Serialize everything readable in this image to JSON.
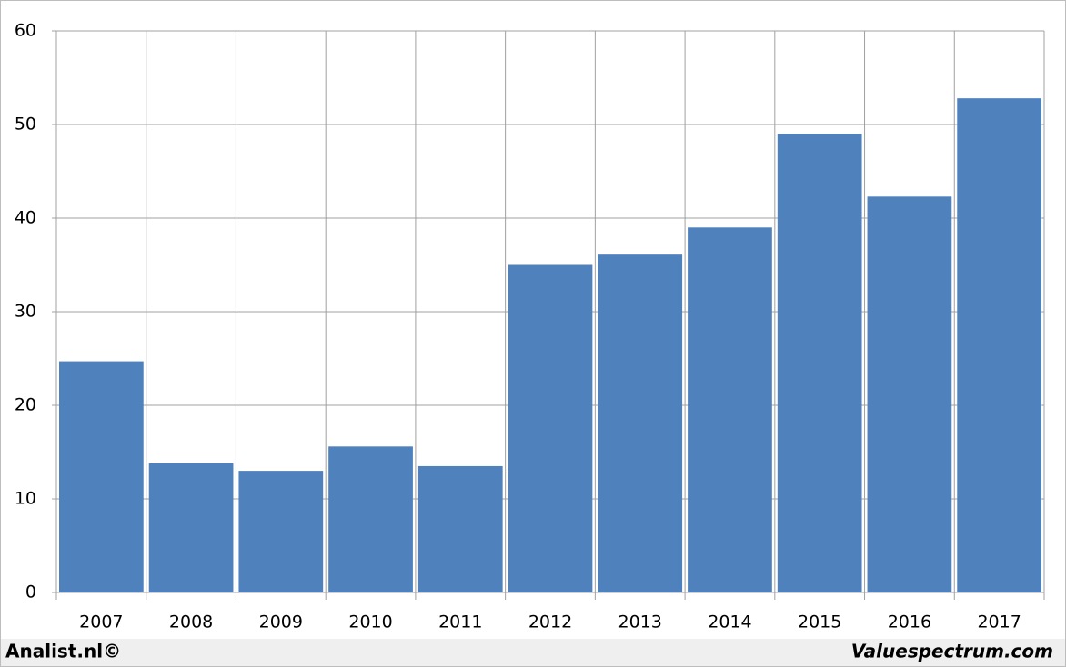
{
  "chart_data": {
    "type": "bar",
    "categories": [
      "2007",
      "2008",
      "2009",
      "2010",
      "2011",
      "2012",
      "2013",
      "2014",
      "2015",
      "2016",
      "2017"
    ],
    "values": [
      24.7,
      13.8,
      13.0,
      15.6,
      13.5,
      35.0,
      36.1,
      39.0,
      49.0,
      42.3,
      52.8
    ],
    "color": "#4f81bd",
    "ylim": [
      0,
      60
    ],
    "yticks": [
      0,
      10,
      20,
      30,
      40,
      50,
      60
    ],
    "grid": true,
    "annotations": [
      "Analist.nl©",
      "Valuespectrum.com"
    ]
  }
}
